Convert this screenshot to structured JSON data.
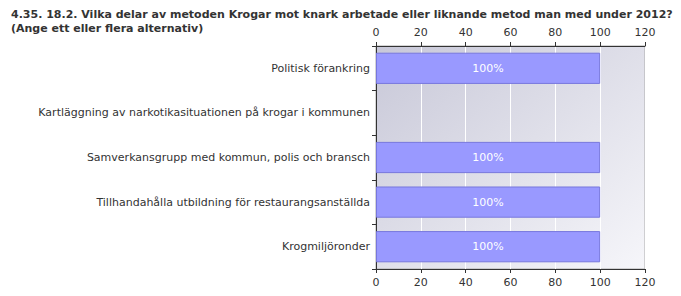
{
  "chart_data": {
    "type": "bar",
    "orientation": "horizontal",
    "title": "4.35. 18.2. Vilka delar av metoden Krogar mot knark arbetade eller liknande metod man med under 2012?",
    "subtitle": "(Ange ett eller flera alternativ)",
    "categories": [
      "Politisk förankring",
      "Kartläggning av narkotikasituationen på krogar i kommunen",
      "Samverkansgrupp med kommun, polis och bransch",
      "Tillhandahålla utbildning för restaurangsanställda",
      "Krogmiljöronder"
    ],
    "values": [
      100,
      null,
      100,
      100,
      100
    ],
    "value_labels": [
      "100%",
      null,
      "100%",
      "100%",
      "100%"
    ],
    "data_labels": true,
    "color": "#9999ff",
    "xlim": [
      0,
      120
    ],
    "xticks": [
      0,
      20,
      40,
      60,
      80,
      100,
      120
    ],
    "grid": true
  }
}
